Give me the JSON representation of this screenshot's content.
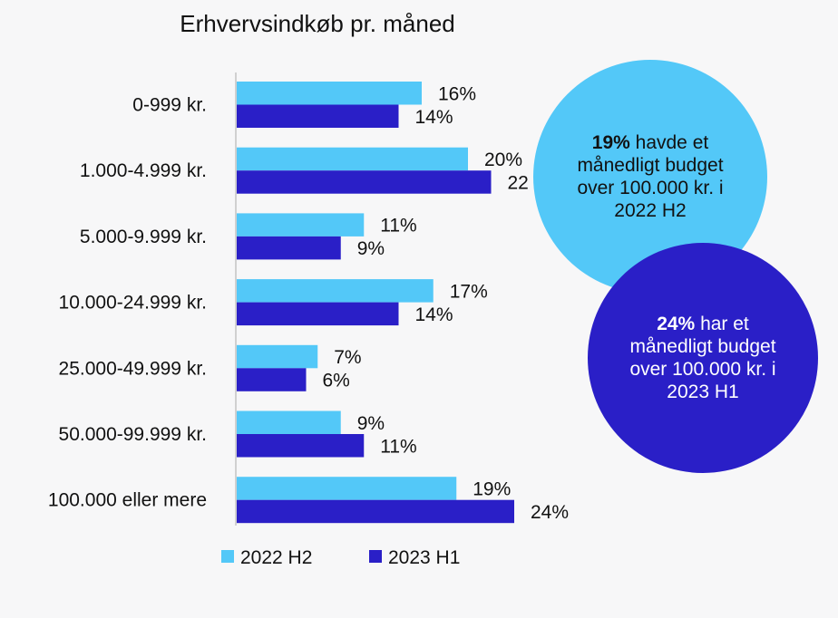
{
  "chart_data": {
    "type": "bar",
    "orientation": "horizontal",
    "title": "Erhvervsindkøb pr. måned",
    "categories": [
      "0-999 kr.",
      "1.000-4.999 kr.",
      "5.000-9.999 kr.",
      "10.000-24.999 kr.",
      "25.000-49.999 kr.",
      "50.000-99.999 kr.",
      "100.000 eller mere"
    ],
    "series": [
      {
        "name": "2022 H2",
        "color": "#53c8f8",
        "values": [
          16,
          20,
          11,
          17,
          7,
          9,
          19
        ],
        "labels": [
          "16%",
          "20%",
          "11%",
          "17%",
          "7%",
          "9%",
          "19%"
        ]
      },
      {
        "name": "2023 H1",
        "color": "#2a1fc7",
        "values": [
          14,
          22,
          9,
          14,
          6,
          11,
          24
        ],
        "labels": [
          "14%",
          "22",
          "9%",
          "14%",
          "6%",
          "11%",
          "24%"
        ]
      }
    ],
    "unit": "%",
    "xlim": [
      0,
      24
    ],
    "grid": false,
    "legend_position": "bottom"
  },
  "callouts": [
    {
      "bold": "19%",
      "text": " havde et månedligt budget over 100.000 kr. i 2022 H2",
      "color": "#53c8f8"
    },
    {
      "bold": "24%",
      "text": " har et månedligt budget over 100.000 kr. i 2023 H1",
      "color": "#2a1fc7"
    }
  ]
}
